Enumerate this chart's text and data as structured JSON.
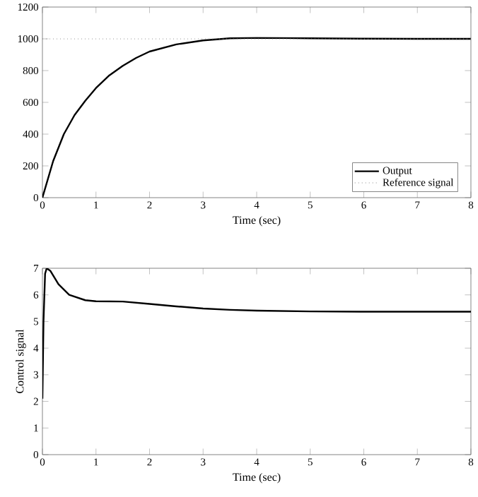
{
  "chart_data": [
    {
      "type": "line",
      "xlabel": "Time (sec)",
      "xlim": [
        0,
        8
      ],
      "xticks": [
        0,
        1,
        2,
        3,
        4,
        5,
        6,
        7,
        8
      ],
      "ylim": [
        0,
        1200
      ],
      "yticks": [
        0,
        200,
        400,
        600,
        800,
        1000,
        1200
      ],
      "legend": "bottom right",
      "series": [
        {
          "name": "Output",
          "color": "#000000",
          "line_style": "solid",
          "x": [
            0,
            0.2,
            0.4,
            0.6,
            0.8,
            1,
            1.25,
            1.5,
            1.75,
            2,
            2.5,
            3,
            3.5,
            4,
            4.5,
            5,
            6,
            7,
            8
          ],
          "values": [
            0,
            230,
            400,
            520,
            610,
            690,
            770,
            830,
            880,
            920,
            965,
            990,
            1003,
            1006,
            1005,
            1003,
            1001,
            1000,
            1000
          ]
        },
        {
          "name": "Reference signal",
          "color": "#888888",
          "line_style": "dotted",
          "x": [
            0,
            8
          ],
          "values": [
            1000,
            1000
          ]
        }
      ]
    },
    {
      "type": "line",
      "xlabel": "Time (sec)",
      "ylabel": "Control signal",
      "xlim": [
        0,
        8
      ],
      "xticks": [
        0,
        1,
        2,
        3,
        4,
        5,
        6,
        7,
        8
      ],
      "ylim": [
        0,
        7
      ],
      "yticks": [
        0,
        1,
        2,
        3,
        4,
        5,
        6,
        7
      ],
      "series": [
        {
          "color": "#000000",
          "line_style": "solid",
          "x": [
            0,
            0.02,
            0.05,
            0.08,
            0.15,
            0.3,
            0.5,
            0.8,
            1,
            1.5,
            2,
            2.5,
            3,
            3.5,
            4,
            5,
            6,
            7,
            8
          ],
          "values": [
            2.1,
            5,
            6.8,
            7.0,
            6.9,
            6.4,
            6.0,
            5.8,
            5.76,
            5.75,
            5.66,
            5.57,
            5.49,
            5.44,
            5.41,
            5.38,
            5.37,
            5.37,
            5.37
          ]
        }
      ]
    }
  ]
}
